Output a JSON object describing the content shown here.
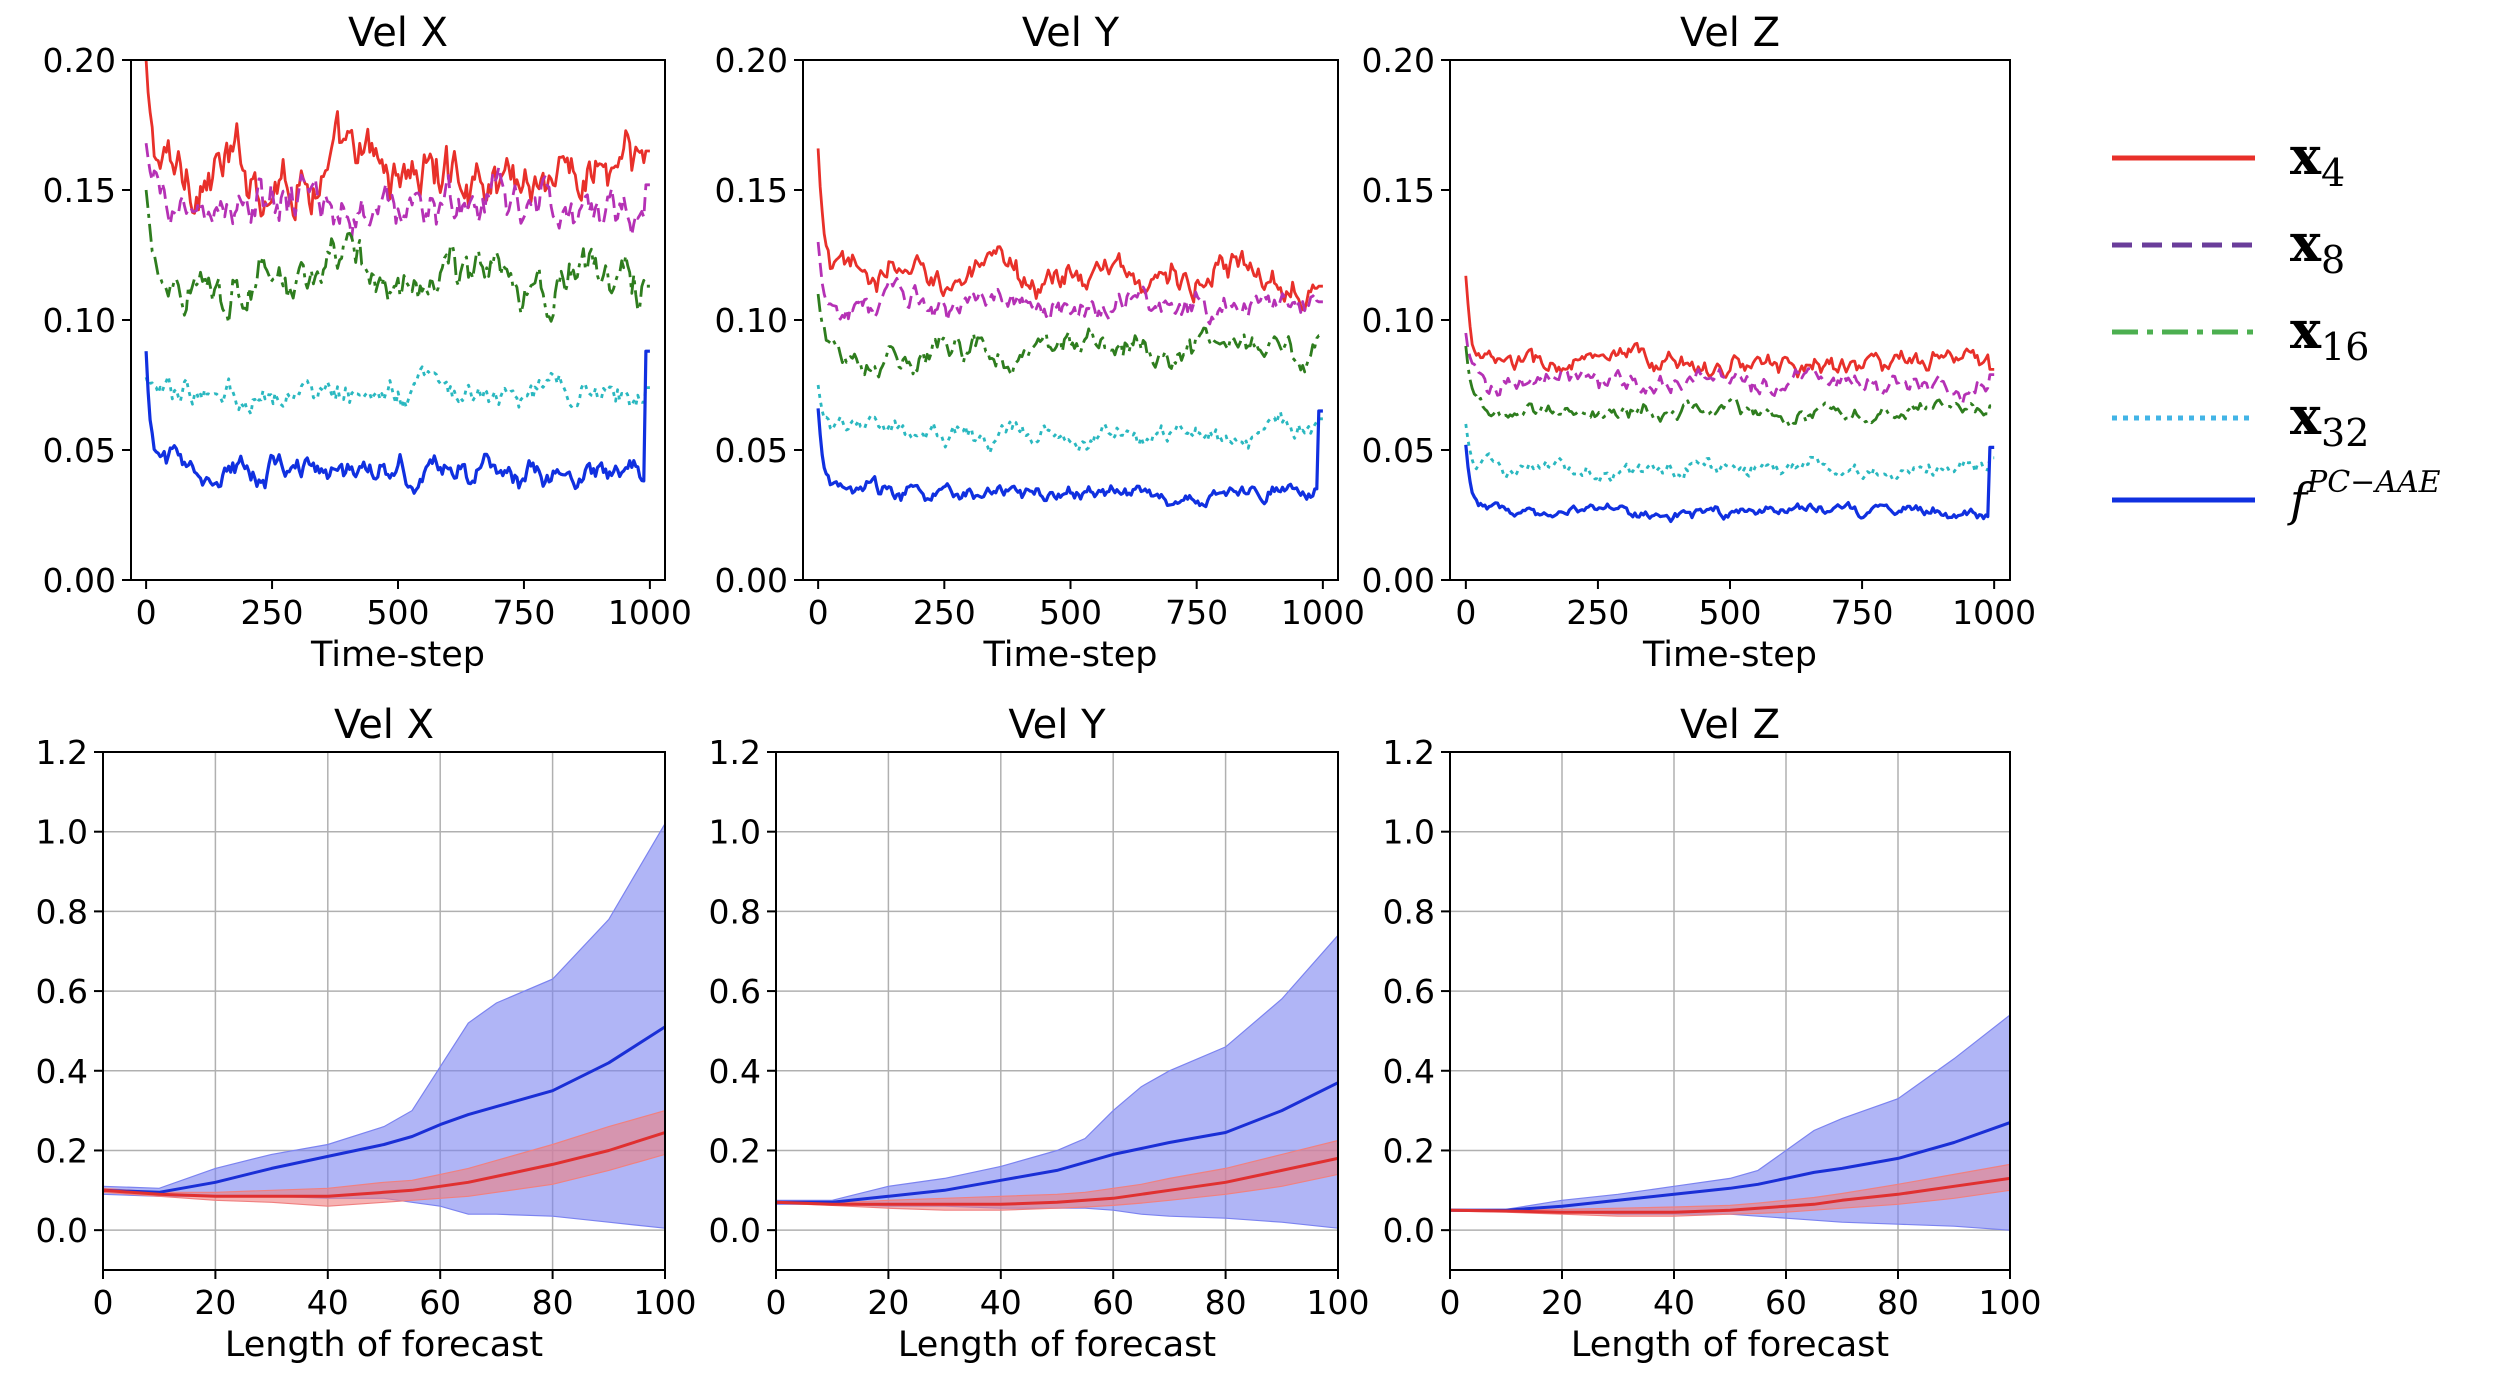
{
  "legend": {
    "entries": [
      {
        "base": "x",
        "sub": "4",
        "color": "#e8302a",
        "dash": "solid"
      },
      {
        "base": "x",
        "sub": "8",
        "color": "#6a3d9a",
        "dash": "dashed"
      },
      {
        "base": "x",
        "sub": "16",
        "color": "#4caf50",
        "dash": "dashdot"
      },
      {
        "base": "x",
        "sub": "32",
        "color": "#42b4e6",
        "dash": "dotted"
      },
      {
        "base": "f",
        "sup": "PC−AAE",
        "color": "#1030e0",
        "dash": "solid"
      }
    ]
  },
  "chart_data": [
    {
      "type": "line",
      "title": "Vel X",
      "xlabel": "Time-step",
      "ylabel": "",
      "xlim": [
        -30,
        1030
      ],
      "ylim": [
        0,
        0.2
      ],
      "xticks": [
        "0",
        "250",
        "500",
        "750",
        "1000"
      ],
      "yticks": [
        "0.00",
        "0.05",
        "0.10",
        "0.15",
        "0.20"
      ],
      "grid": false,
      "series": [
        {
          "name": "x4",
          "color": "#e8302a",
          "dash": "solid",
          "start": 0.2,
          "mean": 0.157,
          "amp": 0.011,
          "end": 0.165
        },
        {
          "name": "x8",
          "color": "#b531b5",
          "dash": "dashed",
          "start": 0.168,
          "mean": 0.143,
          "amp": 0.009,
          "end": 0.152
        },
        {
          "name": "x16",
          "color": "#2e7d1e",
          "dash": "dashdot",
          "start": 0.15,
          "mean": 0.117,
          "amp": 0.009,
          "end": 0.113
        },
        {
          "name": "x32",
          "color": "#2ab8c0",
          "dash": "dotted",
          "start": 0.078,
          "mean": 0.072,
          "amp": 0.005,
          "end": 0.074
        },
        {
          "name": "fPC-AAE",
          "color": "#1030e0",
          "dash": "solid",
          "start": 0.088,
          "mean": 0.042,
          "amp": 0.005,
          "end": 0.088
        }
      ]
    },
    {
      "type": "line",
      "title": "Vel Y",
      "xlabel": "Time-step",
      "ylabel": "",
      "xlim": [
        -30,
        1030
      ],
      "ylim": [
        0,
        0.2
      ],
      "xticks": [
        "0",
        "250",
        "500",
        "750",
        "1000"
      ],
      "yticks": [
        "0.00",
        "0.05",
        "0.10",
        "0.15",
        "0.20"
      ],
      "grid": false,
      "series": [
        {
          "name": "x4",
          "color": "#e8302a",
          "dash": "solid",
          "start": 0.166,
          "mean": 0.117,
          "amp": 0.006,
          "end": 0.113
        },
        {
          "name": "x8",
          "color": "#b531b5",
          "dash": "dashed",
          "start": 0.13,
          "mean": 0.106,
          "amp": 0.005,
          "end": 0.107
        },
        {
          "name": "x16",
          "color": "#2e7d1e",
          "dash": "dashdot",
          "start": 0.11,
          "mean": 0.088,
          "amp": 0.005,
          "end": 0.094
        },
        {
          "name": "x32",
          "color": "#2ab8c0",
          "dash": "dotted",
          "start": 0.075,
          "mean": 0.056,
          "amp": 0.004,
          "end": 0.062
        },
        {
          "name": "fPC-AAE",
          "color": "#1030e0",
          "dash": "solid",
          "start": 0.066,
          "mean": 0.033,
          "amp": 0.003,
          "end": 0.065
        }
      ]
    },
    {
      "type": "line",
      "title": "Vel Z",
      "xlabel": "Time-step",
      "ylabel": "",
      "xlim": [
        -30,
        1030
      ],
      "ylim": [
        0,
        0.2
      ],
      "xticks": [
        "0",
        "250",
        "500",
        "750",
        "1000"
      ],
      "yticks": [
        "0.00",
        "0.05",
        "0.10",
        "0.15",
        "0.20"
      ],
      "grid": false,
      "series": [
        {
          "name": "x4",
          "color": "#e8302a",
          "dash": "solid",
          "start": 0.117,
          "mean": 0.083,
          "amp": 0.004,
          "end": 0.081
        },
        {
          "name": "x8",
          "color": "#b531b5",
          "dash": "dashed",
          "start": 0.095,
          "mean": 0.076,
          "amp": 0.004,
          "end": 0.079
        },
        {
          "name": "x16",
          "color": "#2e7d1e",
          "dash": "dashdot",
          "start": 0.09,
          "mean": 0.065,
          "amp": 0.003,
          "end": 0.067
        },
        {
          "name": "x32",
          "color": "#2ab8c0",
          "dash": "dotted",
          "start": 0.06,
          "mean": 0.043,
          "amp": 0.003,
          "end": 0.047
        },
        {
          "name": "fPC-AAE",
          "color": "#1030e0",
          "dash": "solid",
          "start": 0.052,
          "mean": 0.026,
          "amp": 0.002,
          "end": 0.051
        }
      ]
    },
    {
      "type": "area",
      "title": "Vel X",
      "xlabel": "Length of forecast",
      "ylabel": "",
      "xlim": [
        0,
        100
      ],
      "ylim": [
        -0.1,
        1.2
      ],
      "xticks": [
        "0",
        "20",
        "40",
        "60",
        "80",
        "100"
      ],
      "yticks": [
        "0.0",
        "0.2",
        "0.4",
        "0.6",
        "0.8",
        "1.0",
        "1.2"
      ],
      "grid": true,
      "x": [
        0,
        10,
        20,
        30,
        40,
        50,
        55,
        60,
        65,
        70,
        80,
        90,
        100
      ],
      "series": [
        {
          "name": "fPC-AAE",
          "color": "#1a2fd6",
          "fill": "#7b83f0",
          "mean": [
            0.1,
            0.095,
            0.12,
            0.155,
            0.185,
            0.215,
            0.235,
            0.265,
            0.29,
            0.31,
            0.35,
            0.42,
            0.51
          ],
          "lower": [
            0.09,
            0.085,
            0.085,
            0.085,
            0.08,
            0.08,
            0.07,
            0.06,
            0.04,
            0.04,
            0.035,
            0.02,
            0.005
          ],
          "upper": [
            0.11,
            0.105,
            0.155,
            0.19,
            0.215,
            0.26,
            0.3,
            0.41,
            0.52,
            0.57,
            0.63,
            0.78,
            1.02
          ]
        },
        {
          "name": "x",
          "color": "#e03030",
          "fill": "#f08080",
          "mean": [
            0.1,
            0.09,
            0.085,
            0.085,
            0.085,
            0.095,
            0.1,
            0.11,
            0.12,
            0.135,
            0.165,
            0.2,
            0.245
          ],
          "lower": [
            0.095,
            0.085,
            0.075,
            0.07,
            0.06,
            0.07,
            0.075,
            0.08,
            0.085,
            0.095,
            0.115,
            0.15,
            0.19
          ],
          "upper": [
            0.105,
            0.095,
            0.095,
            0.1,
            0.105,
            0.12,
            0.125,
            0.14,
            0.155,
            0.175,
            0.215,
            0.26,
            0.3
          ]
        }
      ]
    },
    {
      "type": "area",
      "title": "Vel Y",
      "xlabel": "Length of forecast",
      "ylabel": "",
      "xlim": [
        0,
        100
      ],
      "ylim": [
        -0.1,
        1.2
      ],
      "xticks": [
        "0",
        "20",
        "40",
        "60",
        "80",
        "100"
      ],
      "yticks": [
        "0.0",
        "0.2",
        "0.4",
        "0.6",
        "0.8",
        "1.0",
        "1.2"
      ],
      "grid": true,
      "x": [
        0,
        10,
        20,
        30,
        40,
        50,
        55,
        60,
        65,
        70,
        80,
        90,
        100
      ],
      "series": [
        {
          "name": "fPC-AAE",
          "color": "#1a2fd6",
          "fill": "#7b83f0",
          "mean": [
            0.07,
            0.07,
            0.085,
            0.1,
            0.125,
            0.15,
            0.17,
            0.19,
            0.205,
            0.22,
            0.245,
            0.3,
            0.37
          ],
          "lower": [
            0.065,
            0.065,
            0.06,
            0.06,
            0.055,
            0.055,
            0.055,
            0.05,
            0.04,
            0.035,
            0.03,
            0.02,
            0.005
          ],
          "upper": [
            0.075,
            0.075,
            0.11,
            0.13,
            0.16,
            0.2,
            0.23,
            0.3,
            0.36,
            0.4,
            0.46,
            0.58,
            0.74
          ]
        },
        {
          "name": "x",
          "color": "#e03030",
          "fill": "#f08080",
          "mean": [
            0.07,
            0.065,
            0.065,
            0.065,
            0.065,
            0.07,
            0.075,
            0.08,
            0.09,
            0.1,
            0.12,
            0.15,
            0.18
          ],
          "lower": [
            0.068,
            0.062,
            0.055,
            0.05,
            0.05,
            0.055,
            0.058,
            0.062,
            0.068,
            0.075,
            0.09,
            0.11,
            0.14
          ],
          "upper": [
            0.072,
            0.068,
            0.075,
            0.08,
            0.085,
            0.09,
            0.095,
            0.105,
            0.115,
            0.13,
            0.155,
            0.19,
            0.225
          ]
        }
      ]
    },
    {
      "type": "area",
      "title": "Vel Z",
      "xlabel": "Length of forecast",
      "ylabel": "",
      "xlim": [
        0,
        100
      ],
      "ylim": [
        -0.1,
        1.2
      ],
      "xticks": [
        "0",
        "20",
        "40",
        "60",
        "80",
        "100"
      ],
      "yticks": [
        "0.0",
        "0.2",
        "0.4",
        "0.6",
        "0.8",
        "1.0",
        "1.2"
      ],
      "grid": true,
      "x": [
        0,
        10,
        20,
        30,
        40,
        50,
        55,
        60,
        65,
        70,
        80,
        90,
        100
      ],
      "series": [
        {
          "name": "fPC-AAE",
          "color": "#1a2fd6",
          "fill": "#7b83f0",
          "mean": [
            0.05,
            0.05,
            0.06,
            0.075,
            0.09,
            0.105,
            0.115,
            0.13,
            0.145,
            0.155,
            0.18,
            0.22,
            0.27
          ],
          "lower": [
            0.048,
            0.048,
            0.045,
            0.04,
            0.04,
            0.04,
            0.035,
            0.03,
            0.025,
            0.02,
            0.015,
            0.01,
            0.0
          ],
          "upper": [
            0.052,
            0.052,
            0.075,
            0.09,
            0.11,
            0.13,
            0.15,
            0.2,
            0.25,
            0.28,
            0.33,
            0.43,
            0.54
          ]
        },
        {
          "name": "x",
          "color": "#e03030",
          "fill": "#f08080",
          "mean": [
            0.05,
            0.048,
            0.045,
            0.045,
            0.045,
            0.05,
            0.055,
            0.06,
            0.065,
            0.075,
            0.09,
            0.11,
            0.13
          ],
          "lower": [
            0.048,
            0.045,
            0.04,
            0.035,
            0.035,
            0.04,
            0.042,
            0.045,
            0.05,
            0.055,
            0.065,
            0.08,
            0.1
          ],
          "upper": [
            0.052,
            0.051,
            0.052,
            0.055,
            0.058,
            0.062,
            0.068,
            0.075,
            0.082,
            0.092,
            0.115,
            0.14,
            0.165
          ]
        }
      ]
    }
  ]
}
